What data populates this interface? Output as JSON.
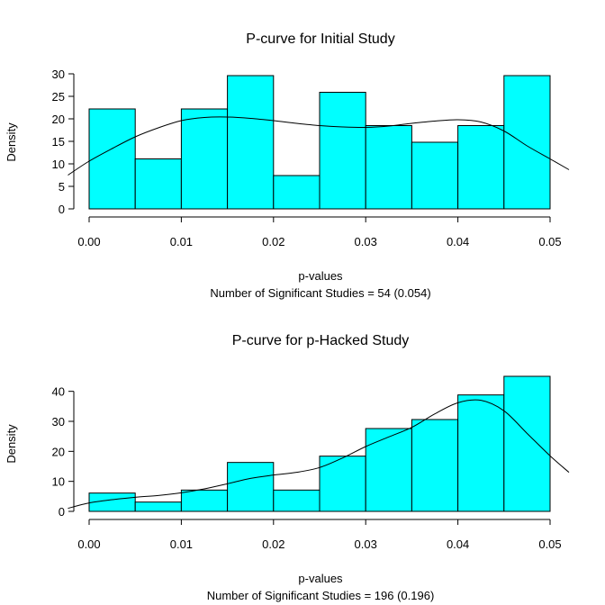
{
  "chart_data": [
    {
      "type": "bar",
      "title": "P-curve for Initial Study",
      "xlabel": "p-values",
      "ylabel": "Density",
      "subtitle": "Number of Significant Studies = 54 (0.054)",
      "bin_edges": [
        0.0,
        0.005,
        0.01,
        0.015,
        0.02,
        0.025,
        0.03,
        0.035,
        0.04,
        0.045,
        0.05
      ],
      "values": [
        22.2,
        11.1,
        22.2,
        29.6,
        7.4,
        25.9,
        18.5,
        14.8,
        18.5,
        29.6
      ],
      "xlim": [
        0.0,
        0.05
      ],
      "ylim": [
        0,
        30
      ],
      "xticks": [
        "0.00",
        "0.01",
        "0.02",
        "0.03",
        "0.04",
        "0.05"
      ],
      "yticks": [
        "0",
        "5",
        "10",
        "15",
        "20",
        "25",
        "30"
      ],
      "bar_color": "#00FFFF",
      "density_curve": {
        "x": [
          -0.0023,
          0.0,
          0.0025,
          0.005,
          0.0075,
          0.01,
          0.0125,
          0.015,
          0.0175,
          0.02,
          0.0225,
          0.025,
          0.0275,
          0.03,
          0.0325,
          0.035,
          0.0375,
          0.04,
          0.0425,
          0.045,
          0.0475,
          0.05,
          0.0523
        ],
        "y": [
          7.5,
          10.6,
          13.4,
          16.0,
          18.0,
          19.6,
          20.3,
          20.4,
          20.1,
          19.6,
          19.0,
          18.5,
          18.2,
          18.1,
          18.4,
          19.0,
          19.5,
          19.8,
          19.3,
          17.3,
          14.0,
          11.1,
          8.7
        ]
      }
    },
    {
      "type": "bar",
      "title": "P-curve for p-Hacked Study",
      "xlabel": "p-values",
      "ylabel": "Density",
      "subtitle": "Number of Significant Studies = 196 (0.196)",
      "bin_edges": [
        0.0,
        0.005,
        0.01,
        0.015,
        0.02,
        0.025,
        0.03,
        0.035,
        0.04,
        0.045,
        0.05
      ],
      "values": [
        6.1,
        3.1,
        7.1,
        16.3,
        7.1,
        18.4,
        27.6,
        30.6,
        38.8,
        45.0
      ],
      "xlim": [
        0.0,
        0.05
      ],
      "ylim": [
        0,
        45
      ],
      "xticks": [
        "0.00",
        "0.01",
        "0.02",
        "0.03",
        "0.04",
        "0.05"
      ],
      "yticks": [
        "0",
        "10",
        "20",
        "30",
        "40"
      ],
      "bar_color": "#00FFFF",
      "density_curve": {
        "x": [
          -0.0023,
          0.0,
          0.0025,
          0.005,
          0.0075,
          0.01,
          0.0125,
          0.015,
          0.0175,
          0.02,
          0.0225,
          0.025,
          0.0275,
          0.03,
          0.0325,
          0.035,
          0.0375,
          0.04,
          0.0425,
          0.045,
          0.0475,
          0.05,
          0.0523
        ],
        "y": [
          1.0,
          2.8,
          3.9,
          4.7,
          5.3,
          6.2,
          7.5,
          9.2,
          11.0,
          12.1,
          13.0,
          14.6,
          17.8,
          21.6,
          24.8,
          28.0,
          32.5,
          36.2,
          37.0,
          33.5,
          26.0,
          18.5,
          13.0
        ]
      }
    }
  ]
}
